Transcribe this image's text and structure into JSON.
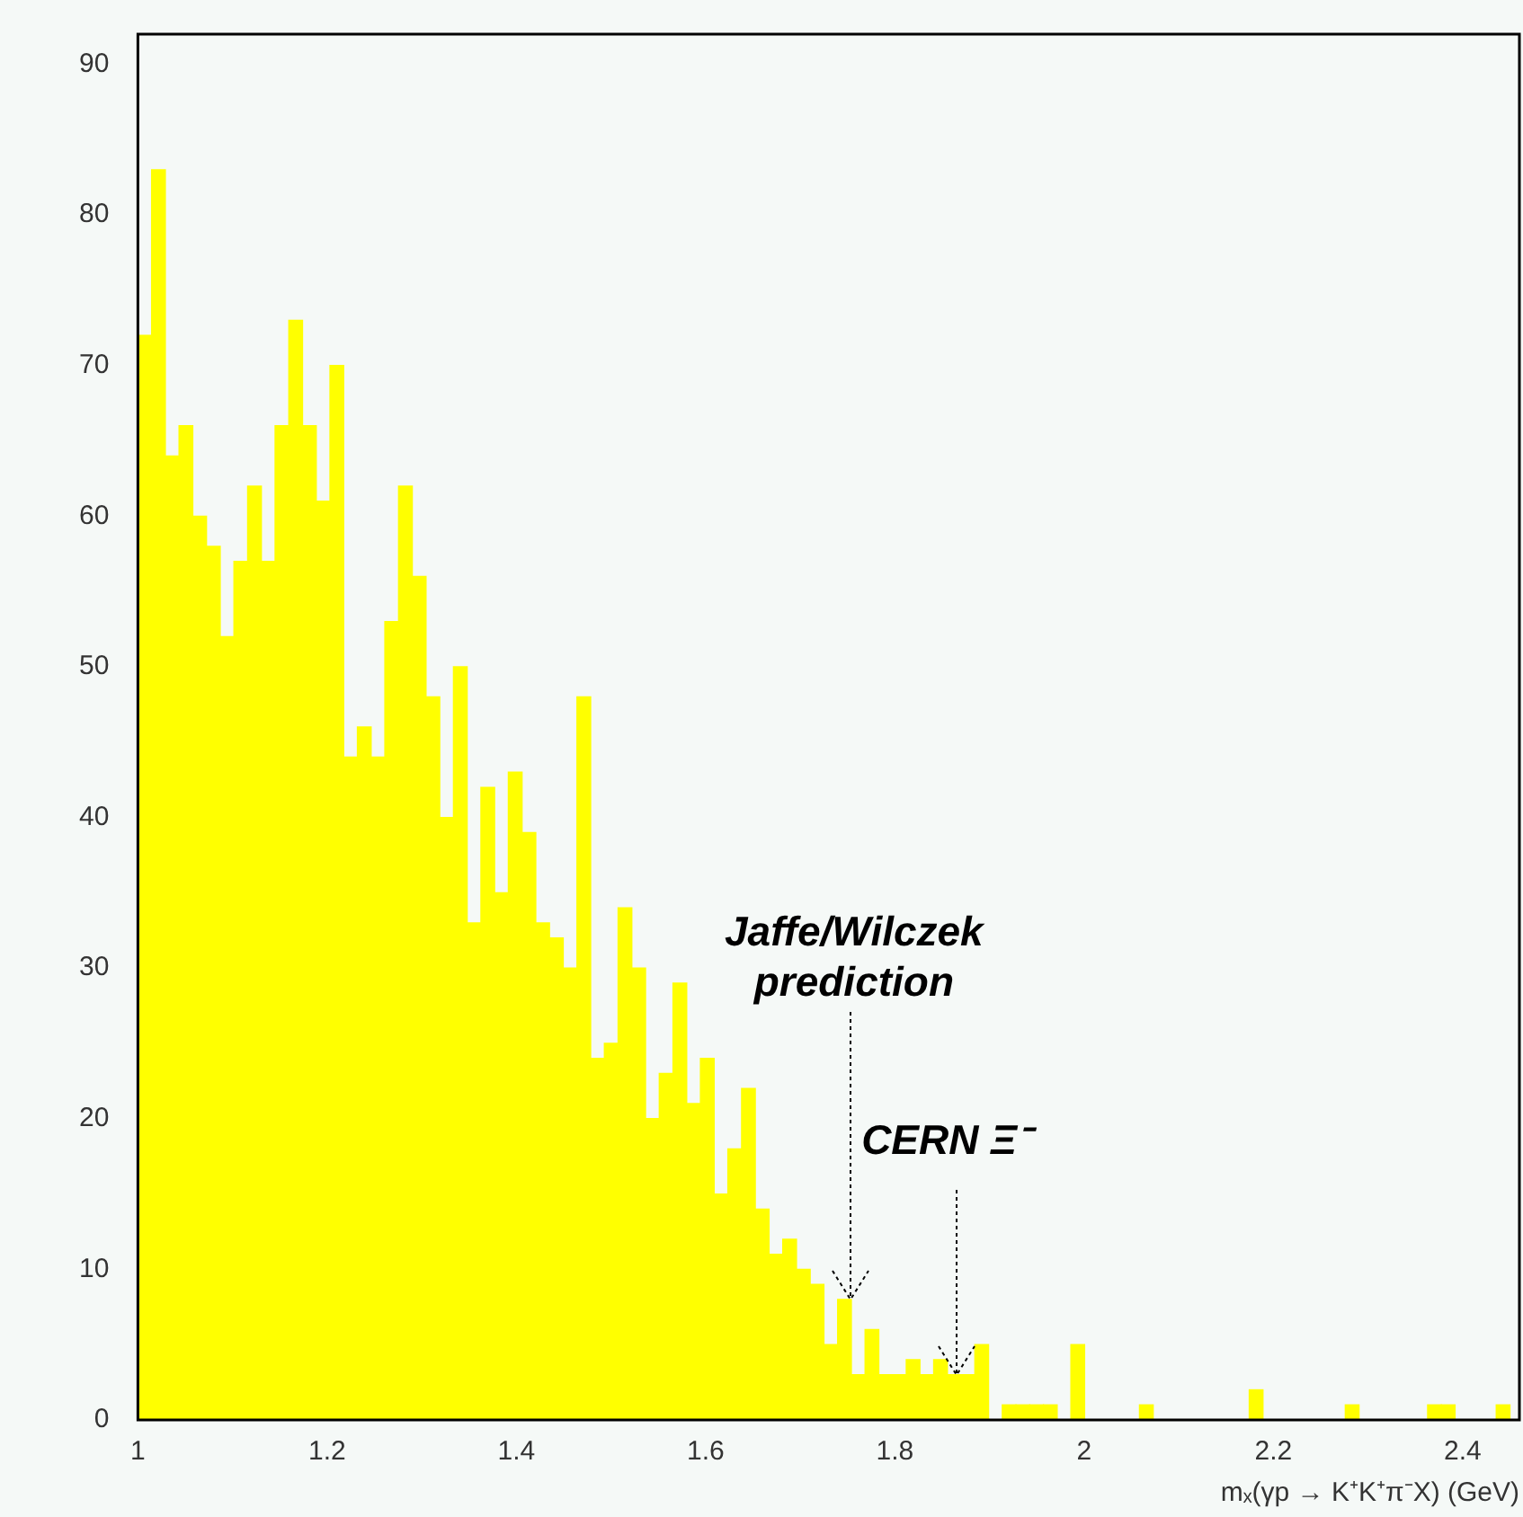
{
  "chart_data": {
    "type": "histogram",
    "xlabel": "mₓ(γp → K⁺K⁺π⁻X) (GeV)",
    "bins": [
      1,
      1.0145,
      1.029,
      1.0435,
      1.058,
      1.0725,
      1.087,
      1.1015,
      1.116,
      1.1305,
      1.145,
      1.1595,
      1.174,
      1.1885,
      1.203,
      1.2175,
      1.232,
      1.2465,
      1.261,
      1.2755,
      1.29,
      1.3045,
      1.319,
      1.3335,
      1.348,
      1.3625,
      1.377,
      1.3915,
      1.406,
      1.4205,
      1.435,
      1.4495,
      1.464,
      1.4785,
      1.493,
      1.5075,
      1.522,
      1.5365,
      1.551,
      1.5655,
      1.58,
      1.5945,
      1.609,
      1.6235,
      1.638,
      1.6525,
      1.667,
      1.6815,
      1.696,
      1.7105,
      1.725,
      1.7395,
      1.754,
      1.7685,
      1.783,
      1.7975,
      1.812,
      1.8265,
      1.841,
      1.8555,
      1.87,
      1.8845,
      1.899,
      1.9135,
      1.928,
      1.9425,
      1.957,
      1.9715,
      1.986,
      2.0005,
      2.015,
      2.0295,
      2.044,
      2.0585,
      2.073,
      2.0875,
      2.102,
      2.1165,
      2.131,
      2.1455,
      2.16,
      2.1745,
      2.189,
      2.2035,
      2.218,
      2.2325,
      2.247,
      2.2615,
      2.276,
      2.2905,
      2.305,
      2.3195,
      2.334,
      2.3485,
      2.363,
      2.3775,
      2.392,
      2.4065,
      2.421,
      2.4355,
      2.45
    ],
    "values": [
      72,
      83,
      64,
      66,
      60,
      58,
      52,
      57,
      62,
      57,
      66,
      73,
      66,
      61,
      70,
      44,
      46,
      44,
      53,
      62,
      56,
      48,
      40,
      50,
      33,
      42,
      35,
      43,
      39,
      33,
      32,
      30,
      48,
      24,
      25,
      34,
      30,
      20,
      23,
      29,
      21,
      24,
      15,
      18,
      22,
      14,
      11,
      12,
      10,
      9,
      5,
      8,
      3,
      6,
      3,
      3,
      4,
      3,
      4,
      3,
      3,
      5,
      0,
      1,
      1,
      1,
      1,
      0,
      5,
      0,
      0,
      0,
      0,
      1,
      0,
      0,
      0,
      0,
      0,
      0,
      0,
      2,
      0,
      0,
      0,
      0,
      0,
      0,
      1,
      0,
      0,
      0,
      0,
      0,
      1,
      1,
      0,
      0,
      0,
      1
    ],
    "color": "#ffff00",
    "xlim": [
      1,
      2.46
    ],
    "xticks": [
      1,
      1.2,
      1.4,
      1.6,
      1.8,
      2,
      2.2,
      2.4
    ],
    "ylim": [
      0,
      92
    ],
    "yticks": [
      0,
      10,
      20,
      30,
      40,
      50,
      60,
      70,
      80,
      90
    ],
    "annotations": [
      {
        "text": "Jaffe/Wilczek\nprediction",
        "x": 1.753,
        "y": 8
      },
      {
        "text": "CERN Ξ⁻",
        "x": 1.866,
        "y": 3
      }
    ]
  }
}
